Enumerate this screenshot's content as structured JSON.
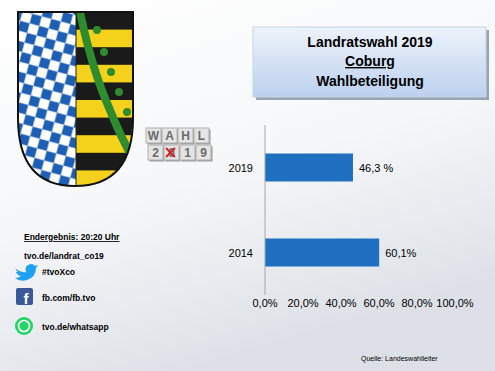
{
  "chart_data": {
    "type": "bar",
    "orientation": "horizontal",
    "title": "Landratswahl 2019",
    "subtitle": "Coburg",
    "annotations": [
      "Wahlbeteiligung"
    ],
    "categories": [
      "2019",
      "2014"
    ],
    "values": [
      46.3,
      60.1
    ],
    "value_labels": [
      "46,3 %",
      "60,1%"
    ],
    "data_labels": true,
    "color": "#1f70c1",
    "grid": false,
    "xlim": [
      0,
      100
    ],
    "xticks": [
      {
        "value": 0,
        "label": "0,0%"
      },
      {
        "value": 20,
        "label": "20,0%"
      },
      {
        "value": 40,
        "label": "40,0%"
      },
      {
        "value": 60,
        "label": "60,0%"
      },
      {
        "value": 80,
        "label": "80,0%"
      },
      {
        "value": 100,
        "label": "100,0%"
      }
    ]
  },
  "logo": [
    "WAHL",
    "2019"
  ],
  "info": [
    "Endergebnis: 20:20 Uhr",
    "tvo.de/landrat_co19"
  ],
  "social": [
    "#tvoXco",
    "fb.com/fb.tvo",
    "tvo.de/whatsapp"
  ],
  "source": "Quelle: Landeswahlleiter"
}
